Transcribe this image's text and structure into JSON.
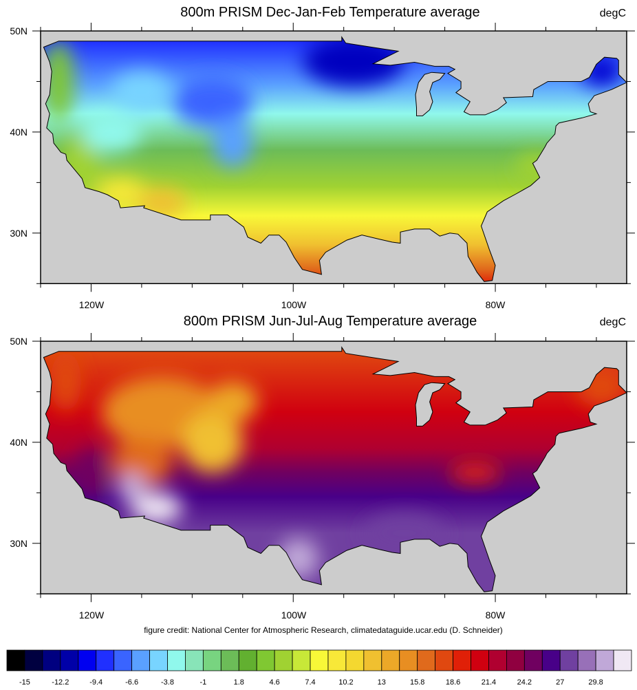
{
  "panels": [
    {
      "title": "800m PRISM Dec-Jan-Feb Temperature average",
      "units": "degC",
      "season": "winter"
    },
    {
      "title": "800m PRISM Jun-Jul-Aug Temperature average",
      "units": "degC",
      "season": "summer"
    }
  ],
  "axes": {
    "lon_labels": [
      "120W",
      "100W",
      "80W"
    ],
    "lat_labels": [
      "50N",
      "40N",
      "30N"
    ]
  },
  "credit": "figure credit: National Center for Atmospheric Research, climatedataguide.ucar.edu (D. Schneider)",
  "colorbar": {
    "labels": [
      "-15",
      "-12.2",
      "-9.4",
      "-6.6",
      "-3.8",
      "-1",
      "1.8",
      "4.6",
      "7.4",
      "10.2",
      "13",
      "15.8",
      "18.6",
      "21.4",
      "24.2",
      "27",
      "29.8"
    ],
    "colors": [
      "#000000",
      "#000040",
      "#000080",
      "#0000a8",
      "#0000f0",
      "#2030ff",
      "#3a64ff",
      "#5aa0ff",
      "#78d4ff",
      "#90f8ec",
      "#88e4b8",
      "#78d480",
      "#6cbc58",
      "#62b030",
      "#80c832",
      "#a0d232",
      "#c8e838",
      "#f8f838",
      "#f8e838",
      "#f4d830",
      "#f0c030",
      "#eca828",
      "#e88e22",
      "#e06a1c",
      "#e04810",
      "#e02008",
      "#d00010",
      "#b00030",
      "#900040",
      "#700060",
      "#480088",
      "#7040a0",
      "#9870b8",
      "#c0a8d8",
      "#f0e8f4"
    ]
  },
  "colors": {
    "background_gray": "#cccccc",
    "border": "#000000"
  }
}
